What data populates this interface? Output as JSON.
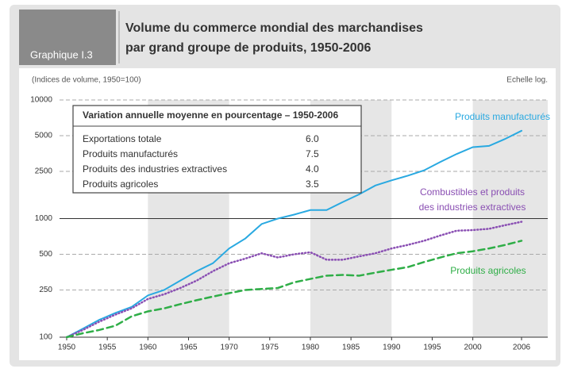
{
  "header": {
    "label": "Graphique I.3",
    "title_lines": [
      "Volume du commerce mondial des marchandises",
      "par grand groupe de produits, 1950-2006"
    ]
  },
  "chart_data": {
    "type": "line",
    "subtitle": "(Indices de volume, 1950=100)",
    "scale_note": "Echelle log.",
    "log_scale": true,
    "grid": true,
    "x": [
      1950,
      1952,
      1954,
      1956,
      1958,
      1960,
      1962,
      1964,
      1966,
      1968,
      1970,
      1972,
      1974,
      1976,
      1978,
      1980,
      1982,
      1984,
      1986,
      1988,
      1990,
      1992,
      1994,
      1996,
      1998,
      2000,
      2002,
      2004,
      2006
    ],
    "xlim": [
      1950,
      2006
    ],
    "xticks": [
      1950,
      1955,
      1960,
      1965,
      1970,
      1975,
      1980,
      1985,
      1990,
      1995,
      2000,
      2006
    ],
    "ylim": [
      100,
      10000
    ],
    "yticks": [
      100,
      250,
      500,
      1000,
      2500,
      5000,
      10000
    ],
    "series": [
      {
        "name": [
          "Produits manufacturés"
        ],
        "color": "#29a9e1",
        "style": "solid",
        "values": [
          100,
          118,
          140,
          160,
          180,
          225,
          250,
          300,
          360,
          420,
          560,
          680,
          900,
          1000,
          1080,
          1180,
          1180,
          1380,
          1600,
          1900,
          2100,
          2300,
          2550,
          3000,
          3500,
          4000,
          4100,
          4700,
          5500
        ]
      },
      {
        "name": [
          "Combustibles et produits",
          "des industries extractives"
        ],
        "color": "#8a4fb3",
        "style": "dotted",
        "values": [
          100,
          115,
          135,
          155,
          175,
          210,
          230,
          260,
          300,
          360,
          420,
          460,
          510,
          470,
          500,
          520,
          450,
          450,
          480,
          510,
          560,
          600,
          650,
          720,
          790,
          800,
          820,
          880,
          940
        ]
      },
      {
        "name": [
          "Produits agricoles"
        ],
        "color": "#2fae47",
        "style": "dashed",
        "values": [
          100,
          108,
          115,
          125,
          150,
          165,
          175,
          190,
          205,
          220,
          235,
          250,
          255,
          260,
          290,
          310,
          330,
          335,
          330,
          350,
          370,
          390,
          430,
          470,
          510,
          530,
          560,
          600,
          650
        ]
      }
    ]
  },
  "table": {
    "title": "Variation annuelle moyenne en pourcentage – 1950-2006",
    "rows": [
      [
        "Exportations totale",
        "6.0"
      ],
      [
        "Produits manufacturés",
        "7.5"
      ],
      [
        "Produits des industries extractives",
        "4.0"
      ],
      [
        "Produits agricoles",
        "3.5"
      ]
    ]
  }
}
